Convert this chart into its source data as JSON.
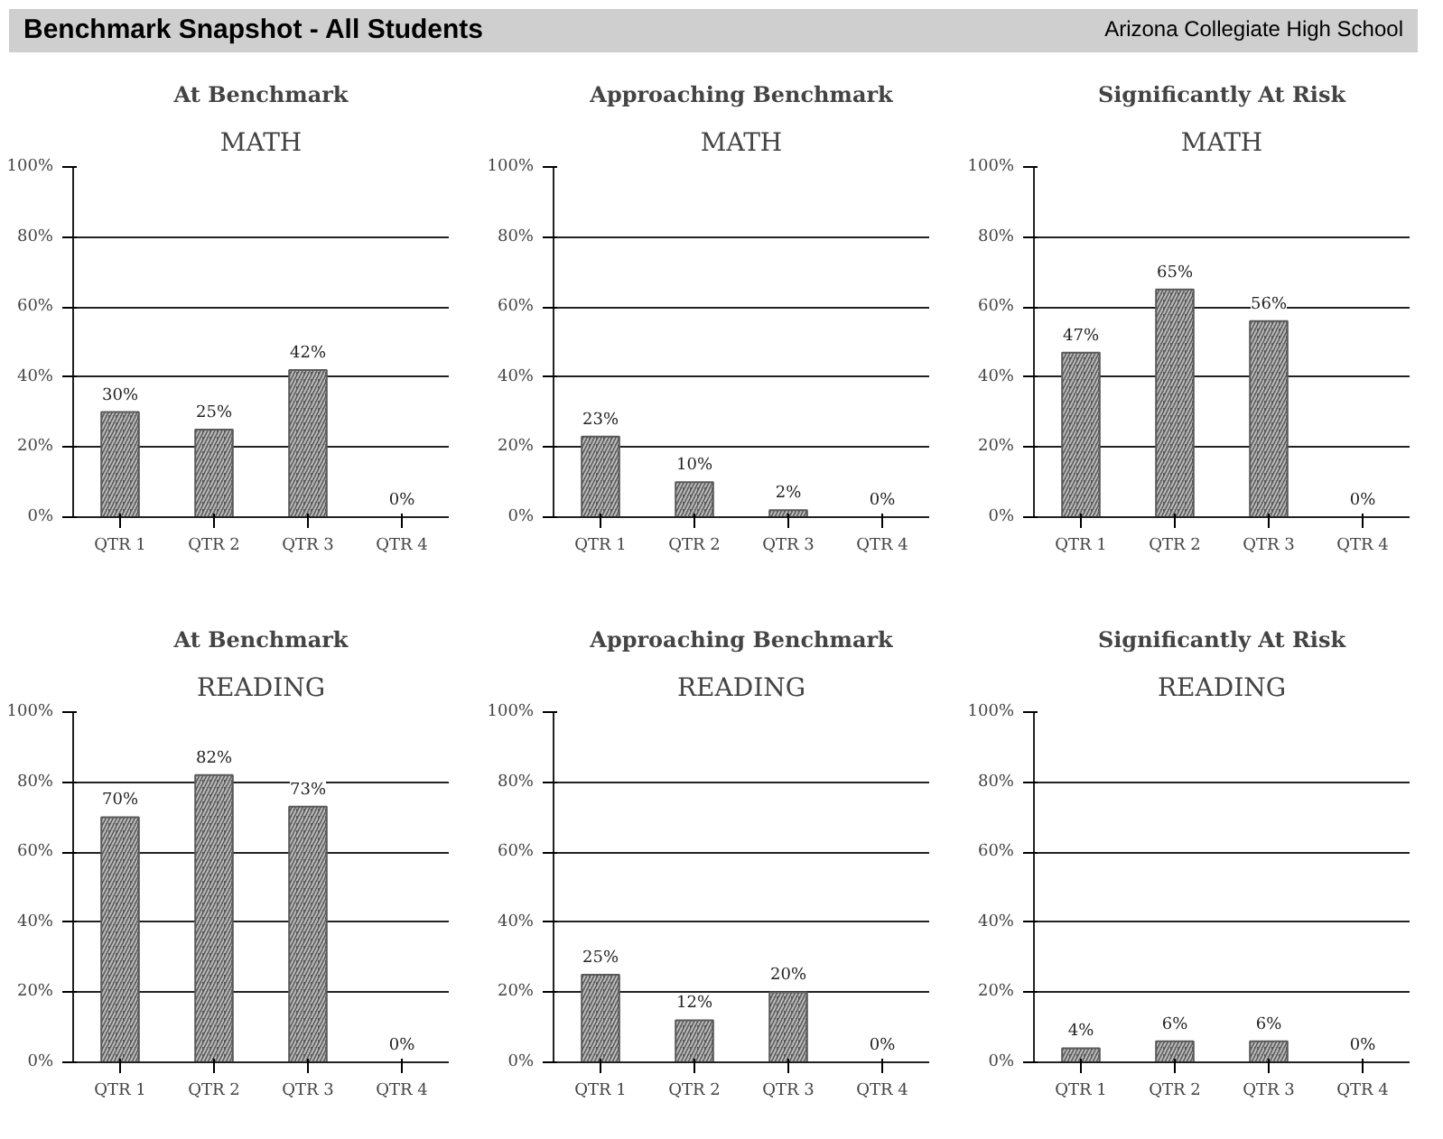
{
  "chart_data": [
    {
      "type": "bar",
      "title": "At Benchmark",
      "subtitle": "MATH",
      "annotations": [
        "Benchmark Snapshot - All Students",
        "Arizona Collegiate High School"
      ],
      "categories": [
        "QTR 1",
        "QTR 2",
        "QTR 3",
        "QTR 4"
      ],
      "values": [
        30,
        25,
        42,
        0
      ],
      "value_labels": [
        "30%",
        "25%",
        "42%",
        "0%"
      ],
      "color": "#5a5a5a",
      "ylim": [
        0,
        100
      ],
      "yticks": [
        {
          "value": 0,
          "label": "0%"
        },
        {
          "value": 20,
          "label": "20%"
        },
        {
          "value": 40,
          "label": "40%"
        },
        {
          "value": 60,
          "label": "60%"
        },
        {
          "value": 80,
          "label": "80%"
        },
        {
          "value": 100,
          "label": "100%"
        }
      ],
      "grid": "y"
    },
    {
      "type": "bar",
      "title": "Approaching Benchmark",
      "subtitle": "MATH",
      "categories": [
        "QTR 1",
        "QTR 2",
        "QTR 3",
        "QTR 4"
      ],
      "values": [
        23,
        10,
        2,
        0
      ],
      "value_labels": [
        "23%",
        "10%",
        "2%",
        "0%"
      ],
      "color": "#5a5a5a",
      "ylim": [
        0,
        100
      ],
      "yticks": [
        {
          "value": 0,
          "label": "0%"
        },
        {
          "value": 20,
          "label": "20%"
        },
        {
          "value": 40,
          "label": "40%"
        },
        {
          "value": 60,
          "label": "60%"
        },
        {
          "value": 80,
          "label": "80%"
        },
        {
          "value": 100,
          "label": "100%"
        }
      ],
      "grid": "y"
    },
    {
      "type": "bar",
      "title": "Significantly At Risk",
      "subtitle": "MATH",
      "categories": [
        "QTR 1",
        "QTR 2",
        "QTR 3",
        "QTR 4"
      ],
      "values": [
        47,
        65,
        56,
        0
      ],
      "value_labels": [
        "47%",
        "65%",
        "56%",
        "0%"
      ],
      "color": "#5a5a5a",
      "ylim": [
        0,
        100
      ],
      "yticks": [
        {
          "value": 0,
          "label": "0%"
        },
        {
          "value": 20,
          "label": "20%"
        },
        {
          "value": 40,
          "label": "40%"
        },
        {
          "value": 60,
          "label": "60%"
        },
        {
          "value": 80,
          "label": "80%"
        },
        {
          "value": 100,
          "label": "100%"
        }
      ],
      "grid": "y"
    },
    {
      "type": "bar",
      "title": "At Benchmark",
      "subtitle": "READING",
      "categories": [
        "QTR 1",
        "QTR 2",
        "QTR 3",
        "QTR 4"
      ],
      "values": [
        70,
        82,
        73,
        0
      ],
      "value_labels": [
        "70%",
        "82%",
        "73%",
        "0%"
      ],
      "color": "#5a5a5a",
      "ylim": [
        0,
        100
      ],
      "yticks": [
        {
          "value": 0,
          "label": "0%"
        },
        {
          "value": 20,
          "label": "20%"
        },
        {
          "value": 40,
          "label": "40%"
        },
        {
          "value": 60,
          "label": "60%"
        },
        {
          "value": 80,
          "label": "80%"
        },
        {
          "value": 100,
          "label": "100%"
        }
      ],
      "grid": "y"
    },
    {
      "type": "bar",
      "title": "Approaching Benchmark",
      "subtitle": "READING",
      "categories": [
        "QTR 1",
        "QTR 2",
        "QTR 3",
        "QTR 4"
      ],
      "values": [
        25,
        12,
        20,
        0
      ],
      "value_labels": [
        "25%",
        "12%",
        "20%",
        "0%"
      ],
      "color": "#5a5a5a",
      "ylim": [
        0,
        100
      ],
      "yticks": [
        {
          "value": 0,
          "label": "0%"
        },
        {
          "value": 20,
          "label": "20%"
        },
        {
          "value": 40,
          "label": "40%"
        },
        {
          "value": 60,
          "label": "60%"
        },
        {
          "value": 80,
          "label": "80%"
        },
        {
          "value": 100,
          "label": "100%"
        }
      ],
      "grid": "y"
    },
    {
      "type": "bar",
      "title": "Significantly At Risk",
      "subtitle": "READING",
      "categories": [
        "QTR 1",
        "QTR 2",
        "QTR 3",
        "QTR 4"
      ],
      "values": [
        4,
        6,
        6,
        0
      ],
      "value_labels": [
        "4%",
        "6%",
        "6%",
        "0%"
      ],
      "color": "#5a5a5a",
      "ylim": [
        0,
        100
      ],
      "yticks": [
        {
          "value": 0,
          "label": "0%"
        },
        {
          "value": 20,
          "label": "20%"
        },
        {
          "value": 40,
          "label": "40%"
        },
        {
          "value": 60,
          "label": "60%"
        },
        {
          "value": 80,
          "label": "80%"
        },
        {
          "value": 100,
          "label": "100%"
        }
      ],
      "grid": "y"
    }
  ]
}
